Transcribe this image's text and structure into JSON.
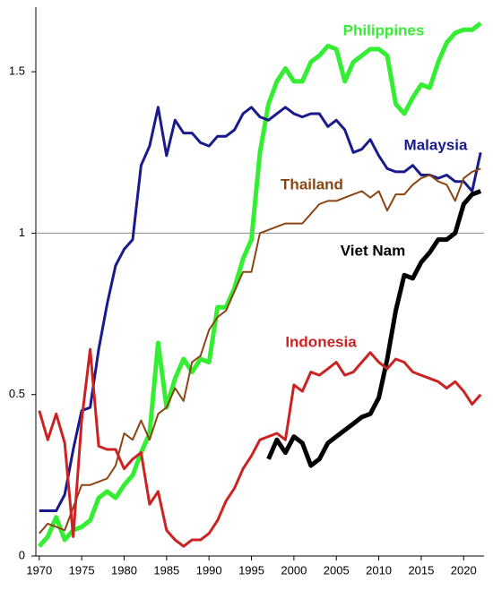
{
  "chart_data": {
    "type": "line",
    "x": [
      1970,
      1971,
      1972,
      1973,
      1974,
      1975,
      1976,
      1977,
      1978,
      1979,
      1980,
      1981,
      1982,
      1983,
      1984,
      1985,
      1986,
      1987,
      1988,
      1989,
      1990,
      1991,
      1992,
      1993,
      1994,
      1995,
      1996,
      1997,
      1998,
      1999,
      2000,
      2001,
      2002,
      2003,
      2004,
      2005,
      2006,
      2007,
      2008,
      2009,
      2010,
      2011,
      2012,
      2013,
      2014,
      2015,
      2016,
      2017,
      2018,
      2019,
      2020,
      2021,
      2022
    ],
    "xlim": [
      1969.6,
      2022.4
    ],
    "xticks": [
      1970,
      1975,
      1980,
      1985,
      1990,
      1995,
      2000,
      2005,
      2010,
      2015,
      2020
    ],
    "ylim": [
      0,
      1.7
    ],
    "yticks": [
      0,
      0.5,
      1,
      1.5
    ],
    "reference_line": 1,
    "series": [
      {
        "name": "Philippines",
        "color": "#33ee33",
        "width": 5,
        "values": [
          0.03,
          0.06,
          0.12,
          0.05,
          0.08,
          0.09,
          0.11,
          0.18,
          0.2,
          0.18,
          0.22,
          0.25,
          0.32,
          0.38,
          0.66,
          0.46,
          0.55,
          0.61,
          0.57,
          0.61,
          0.6,
          0.77,
          0.77,
          0.83,
          0.92,
          0.98,
          1.25,
          1.4,
          1.47,
          1.51,
          1.47,
          1.47,
          1.53,
          1.55,
          1.58,
          1.57,
          1.47,
          1.53,
          1.55,
          1.57,
          1.57,
          1.55,
          1.4,
          1.37,
          1.42,
          1.46,
          1.45,
          1.53,
          1.59,
          1.62,
          1.63,
          1.63,
          1.65
        ]
      },
      {
        "name": "Malaysia",
        "color": "#1a1a8c",
        "width": 3,
        "values": [
          0.14,
          0.14,
          0.14,
          0.19,
          0.33,
          0.45,
          0.46,
          0.64,
          0.78,
          0.9,
          0.95,
          0.98,
          1.21,
          1.27,
          1.39,
          1.24,
          1.35,
          1.31,
          1.31,
          1.28,
          1.27,
          1.3,
          1.3,
          1.32,
          1.37,
          1.39,
          1.36,
          1.35,
          1.37,
          1.39,
          1.37,
          1.36,
          1.37,
          1.37,
          1.33,
          1.35,
          1.32,
          1.25,
          1.26,
          1.29,
          1.24,
          1.2,
          1.19,
          1.19,
          1.21,
          1.18,
          1.18,
          1.17,
          1.18,
          1.16,
          1.16,
          1.13,
          1.25
        ]
      },
      {
        "name": "Thailand",
        "color": "#8b4513",
        "width": 2,
        "values": [
          0.07,
          0.1,
          0.09,
          0.08,
          0.15,
          0.22,
          0.22,
          0.23,
          0.24,
          0.28,
          0.38,
          0.36,
          0.42,
          0.36,
          0.44,
          0.46,
          0.52,
          0.48,
          0.6,
          0.62,
          0.7,
          0.74,
          0.76,
          0.82,
          0.88,
          0.88,
          1.0,
          1.01,
          1.02,
          1.03,
          1.03,
          1.03,
          1.06,
          1.09,
          1.1,
          1.1,
          1.11,
          1.12,
          1.13,
          1.11,
          1.13,
          1.07,
          1.12,
          1.12,
          1.15,
          1.17,
          1.18,
          1.16,
          1.15,
          1.1,
          1.17,
          1.19,
          1.2
        ]
      },
      {
        "name": "Viet Nam",
        "color": "#000000",
        "width": 5,
        "values": [
          null,
          null,
          null,
          null,
          null,
          null,
          null,
          null,
          null,
          null,
          null,
          null,
          null,
          null,
          null,
          null,
          null,
          null,
          null,
          null,
          null,
          null,
          null,
          null,
          null,
          null,
          null,
          0.3,
          0.36,
          0.32,
          0.37,
          0.35,
          0.28,
          0.3,
          0.35,
          0.37,
          0.39,
          0.41,
          0.43,
          0.44,
          0.49,
          0.61,
          0.76,
          0.87,
          0.86,
          0.91,
          0.94,
          0.98,
          0.98,
          1.0,
          1.09,
          1.12,
          1.13
        ]
      },
      {
        "name": "Indonesia",
        "color": "#cc2222",
        "width": 3,
        "values": [
          0.45,
          0.36,
          0.44,
          0.35,
          0.06,
          0.42,
          0.64,
          0.34,
          0.33,
          0.33,
          0.27,
          0.3,
          0.32,
          0.16,
          0.2,
          0.08,
          0.05,
          0.03,
          0.05,
          0.05,
          0.07,
          0.11,
          0.17,
          0.21,
          0.27,
          0.31,
          0.36,
          0.37,
          0.38,
          0.36,
          0.53,
          0.51,
          0.57,
          0.56,
          0.58,
          0.6,
          0.56,
          0.57,
          0.6,
          0.63,
          0.6,
          0.58,
          0.61,
          0.6,
          0.57,
          0.56,
          0.55,
          0.54,
          0.52,
          0.54,
          0.51,
          0.47,
          0.5
        ]
      }
    ]
  }
}
